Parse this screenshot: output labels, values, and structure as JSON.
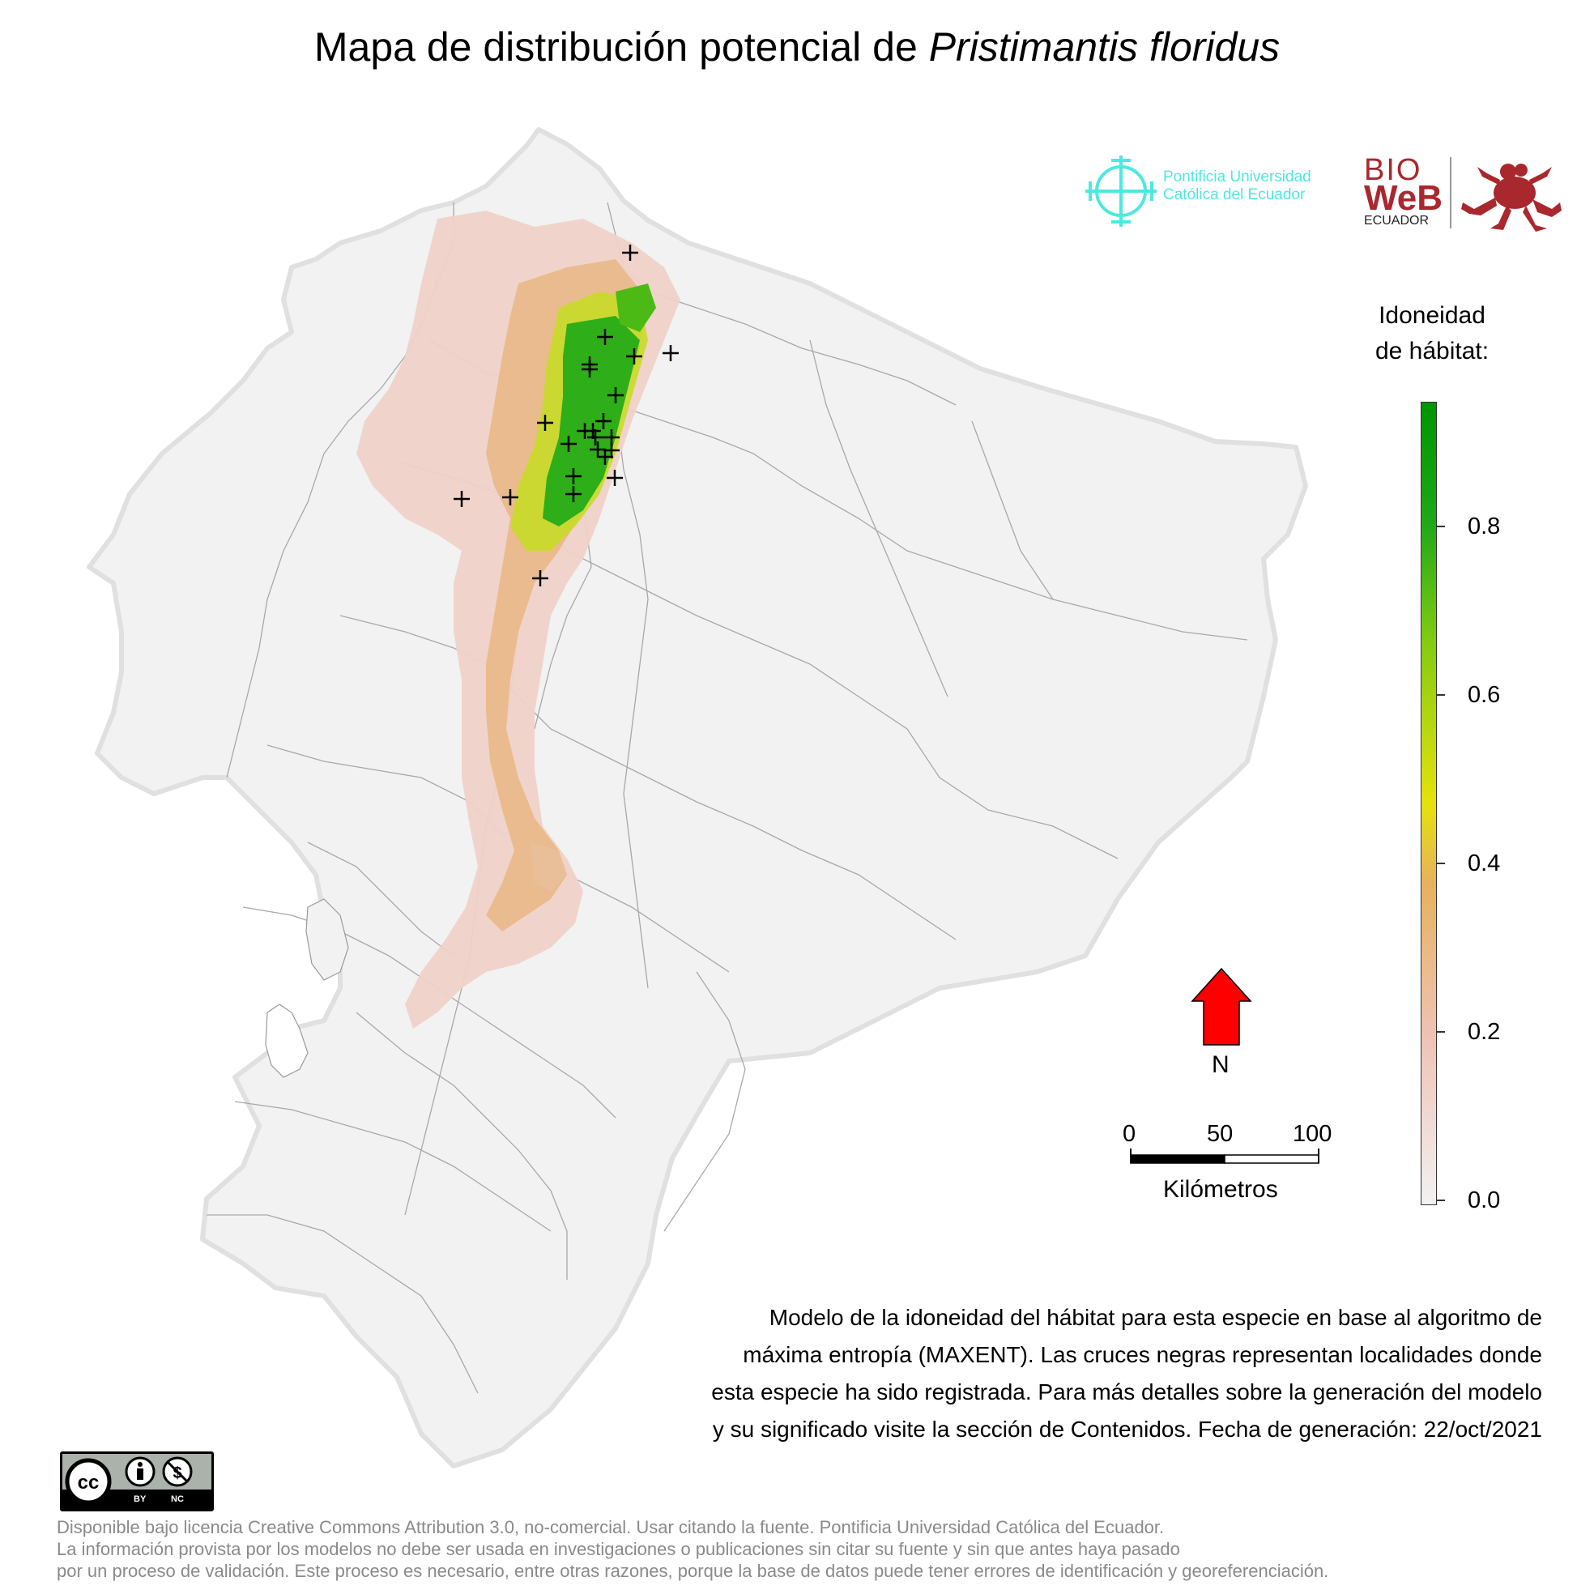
{
  "title": {
    "main": "Mapa de distribución potencial de ",
    "species": "Pristimantis floridus"
  },
  "logos": {
    "puce": {
      "line1": "Pontificia Universidad",
      "line2": "Católica del Ecuador"
    },
    "bioweb": {
      "line1": "BIO",
      "line2": "WeB",
      "line3": "ECUADOR"
    }
  },
  "legend": {
    "title_line1": "Idoneidad",
    "title_line2": "de hábitat:",
    "ticks": [
      "0.8",
      "0.6",
      "0.4",
      "0.2",
      "0.0"
    ],
    "colors": {
      "low": "#f2f2f2",
      "mid": "#e6e20a",
      "high": "#009600"
    }
  },
  "north_arrow": {
    "label": "N",
    "color": "#ff0000"
  },
  "scale_bar": {
    "labels": [
      "0",
      "50",
      "100"
    ],
    "unit": "Kilómetros"
  },
  "description": [
    "Modelo de la idoneidad del hábitat para esta especie en base al algoritmo de",
    "máxima entropía (MAXENT). Las cruces negras representan localidades donde",
    "esta especie ha sido registrada. Para más detalles sobre la generación del modelo",
    "y su significado visite la sección de Contenidos. Fecha de generación: 22/oct/2021"
  ],
  "license_badge": {
    "by": "BY",
    "nc": "NC"
  },
  "license": [
    "Disponible bajo licencia Creative Commons Attribution 3.0, no-comercial. Usar citando la fuente. Pontificia Universidad Católica del Ecuador.",
    "La información provista por los modelos no debe ser usada en investigaciones o publicaciones sin citar su fuente y sin que antes haya pasado",
    "por un proceso de validación. Este proceso es necesario, entre otras razones, porque la base de datos puede tener errores de identificación y georeferenciación."
  ]
}
